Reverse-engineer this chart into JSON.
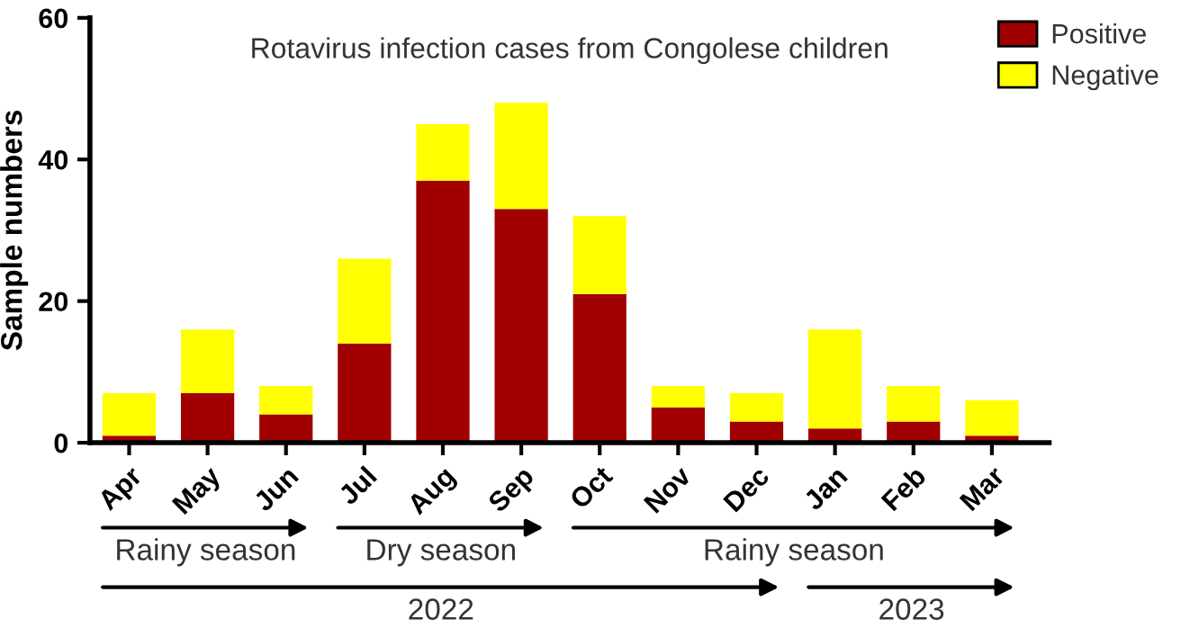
{
  "chart_data": {
    "type": "bar",
    "title": "Rotavirus infection cases from Congolese children",
    "ylabel": "Sample numbers",
    "categories": [
      "Apr",
      "May",
      "Jun",
      "Jul",
      "Aug",
      "Sep",
      "Oct",
      "Nov",
      "Dec",
      "Jan",
      "Feb",
      "Mar"
    ],
    "stacked": true,
    "series": [
      {
        "name": "Positive",
        "color": "#a00000",
        "values": [
          1,
          7,
          4,
          14,
          37,
          33,
          21,
          5,
          3,
          2,
          3,
          1
        ]
      },
      {
        "name": "Negative",
        "color": "#ffff00",
        "values": [
          6,
          9,
          4,
          12,
          8,
          15,
          11,
          3,
          4,
          14,
          5,
          5
        ]
      }
    ],
    "ylim": [
      0,
      60
    ],
    "yticks": [
      0,
      20,
      40,
      60
    ],
    "grid": false,
    "legend": "top right",
    "annotations": [
      "Rainy season",
      "Dry season",
      "Rainy season",
      "2022",
      "2023"
    ]
  }
}
